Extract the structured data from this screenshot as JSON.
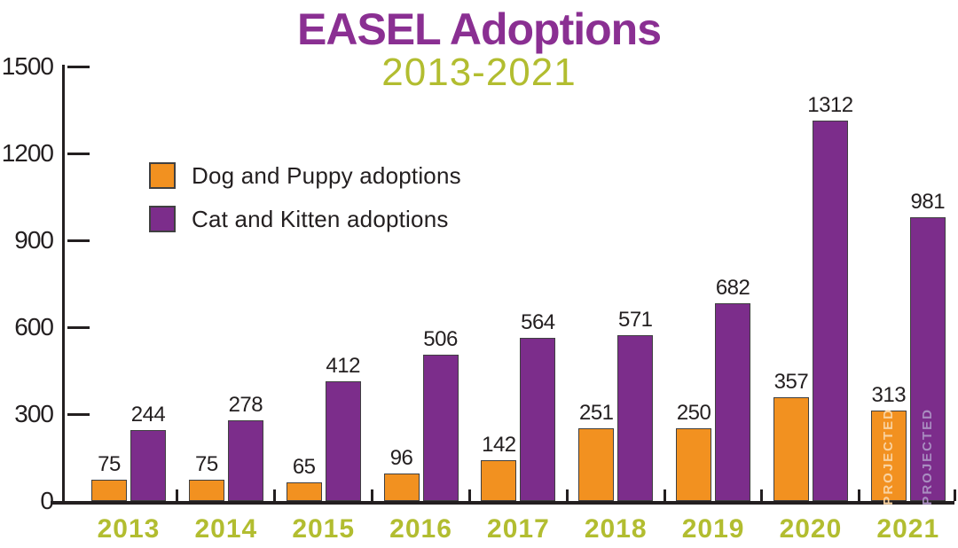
{
  "title": "EASEL Adoptions",
  "subtitle": "2013-2021",
  "colors": {
    "title_purple": "#8a2f92",
    "accent_green": "#b2bd30",
    "dog_orange": "#f29120",
    "cat_purple": "#7c2d8b",
    "bar_outline": "#404041",
    "text_ink": "#231f20",
    "projected_text_on_orange": "#f9d2a0",
    "projected_text_on_purple": "#a98dc0"
  },
  "legend": {
    "items": [
      {
        "label": "Dog and Puppy adoptions",
        "series": "dog"
      },
      {
        "label": "Cat and Kitten adoptions",
        "series": "cat"
      }
    ]
  },
  "chart_data": {
    "type": "bar",
    "title": "EASEL Adoptions",
    "subtitle": "2013-2021",
    "categories": [
      "2013",
      "2014",
      "2015",
      "2016",
      "2017",
      "2018",
      "2019",
      "2020",
      "2021"
    ],
    "series": [
      {
        "name": "Dog and Puppy adoptions",
        "key": "dog",
        "color": "#f29120",
        "values": [
          75,
          75,
          65,
          96,
          142,
          251,
          250,
          357,
          313
        ]
      },
      {
        "name": "Cat and Kitten adoptions",
        "key": "cat",
        "color": "#7c2d8b",
        "values": [
          244,
          278,
          412,
          506,
          564,
          571,
          682,
          1312,
          981
        ]
      }
    ],
    "y_ticks": [
      0,
      300,
      600,
      900,
      1200,
      1500
    ],
    "ylim": [
      0,
      1500
    ],
    "grid": false,
    "legend_position": "upper-left-inside",
    "annotations": {
      "projected_category": "2021",
      "projected_label": "PROJECTED"
    }
  }
}
